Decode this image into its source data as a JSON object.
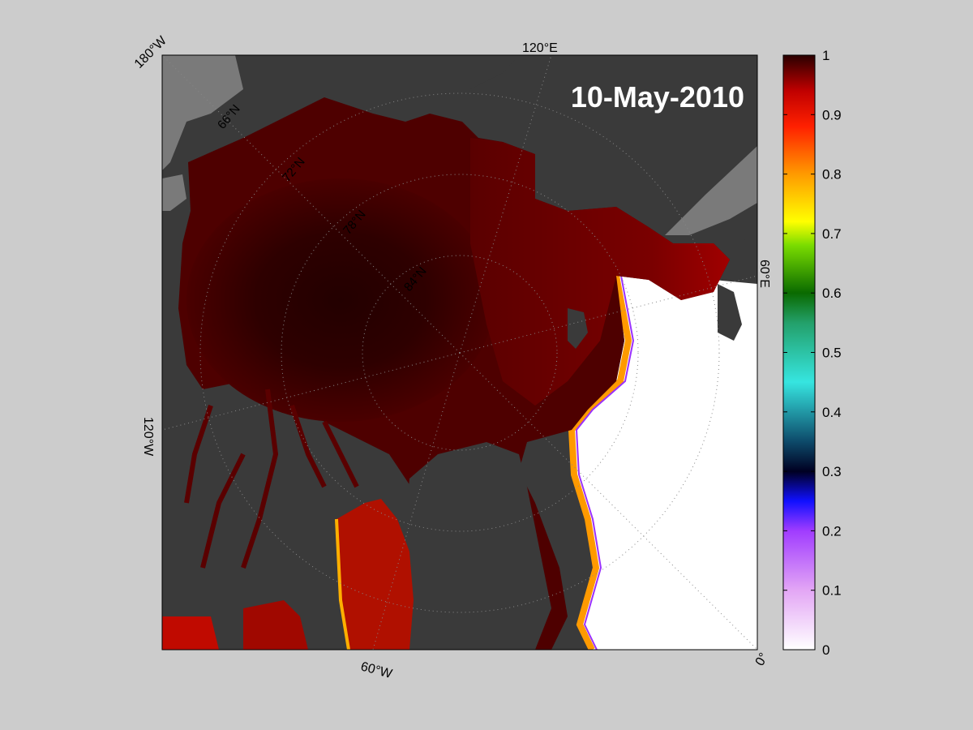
{
  "map": {
    "date_label": "10-May-2010",
    "lon_labels": {
      "top_left": "180°W",
      "top": "120°E",
      "right": "60°E",
      "bottom_right": "0°",
      "bottom": "60°W",
      "left": "120°W"
    },
    "lat_labels": {
      "lat66": "66°N",
      "lat72": "72°N",
      "lat78": "78°N",
      "lat84": "84°N"
    },
    "colors": {
      "ocean_open": "#ffffff",
      "land": "#3a3a3a",
      "land_gray": "#7a7a7a",
      "ice_dense": "#2a0000",
      "ice_high": "#6a0000",
      "figure_bg": "#cccccc"
    }
  },
  "colorbar": {
    "ticks": [
      "0",
      "0.1",
      "0.2",
      "0.3",
      "0.4",
      "0.5",
      "0.6",
      "0.7",
      "0.8",
      "0.9",
      "1"
    ],
    "min": 0,
    "max": 1
  }
}
